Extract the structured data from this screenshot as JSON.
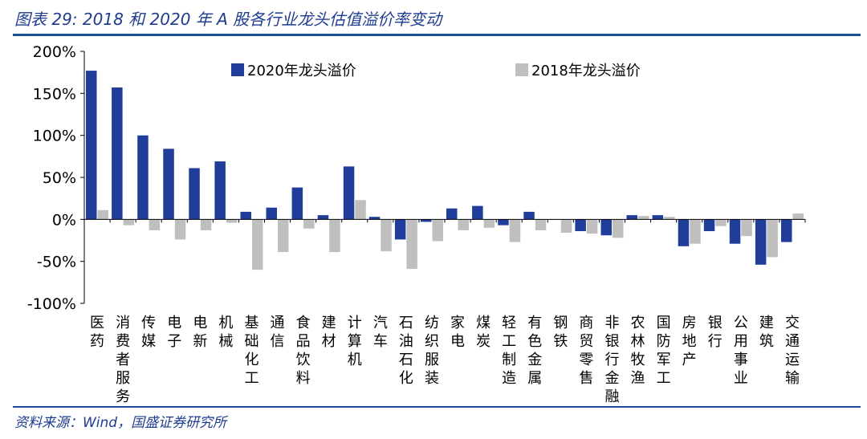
{
  "figure": {
    "title": "图表 29:  2018 和 2020 年 A 股各行业龙头估值溢价率变动",
    "source": "资料来源：Wind，国盛证券研究所"
  },
  "colors": {
    "series_2020": "#1f3d99",
    "series_2018": "#bfbfbf",
    "rule": "#1f4e9a"
  },
  "chart_data": {
    "type": "bar",
    "title": "图表 29:  2018 和 2020 年 A 股各行业龙头估值溢价率变动",
    "xlabel": "",
    "ylabel": "",
    "ylim": [
      -100,
      200
    ],
    "yticks": [
      -100,
      -50,
      0,
      50,
      100,
      150,
      200
    ],
    "ytick_labels": [
      "-100%",
      "-50%",
      "0%",
      "50%",
      "100%",
      "150%",
      "200%"
    ],
    "legend_position": "top",
    "categories": [
      "医药",
      "消费者服务",
      "传媒",
      "电子",
      "电新",
      "机械",
      "基础化工",
      "通信",
      "食品饮料",
      "建材",
      "计算机",
      "汽车",
      "石油石化",
      "纺织服装",
      "家电",
      "煤炭",
      "轻工制造",
      "有色金属",
      "钢铁",
      "商贸零售",
      "非银行金融",
      "农林牧渔",
      "国防军工",
      "房地产",
      "银行",
      "公用事业",
      "建筑",
      "交通运输"
    ],
    "series": [
      {
        "name": "2020年龙头溢价",
        "values": [
          177,
          157,
          100,
          84,
          61,
          69,
          9,
          14,
          38,
          5,
          63,
          3,
          -24,
          -3,
          13,
          16,
          -7,
          9,
          0,
          -14,
          -19,
          5,
          5,
          -32,
          -14,
          -29,
          -54,
          -27
        ]
      },
      {
        "name": "2018年龙头溢价",
        "values": [
          11,
          -7,
          -13,
          -24,
          -13,
          -4,
          -60,
          -39,
          -11,
          -39,
          23,
          -38,
          -59,
          -26,
          -13,
          -10,
          -27,
          -13,
          -16,
          -17,
          -22,
          4,
          3,
          -29,
          -8,
          -20,
          -45,
          7
        ]
      }
    ]
  }
}
